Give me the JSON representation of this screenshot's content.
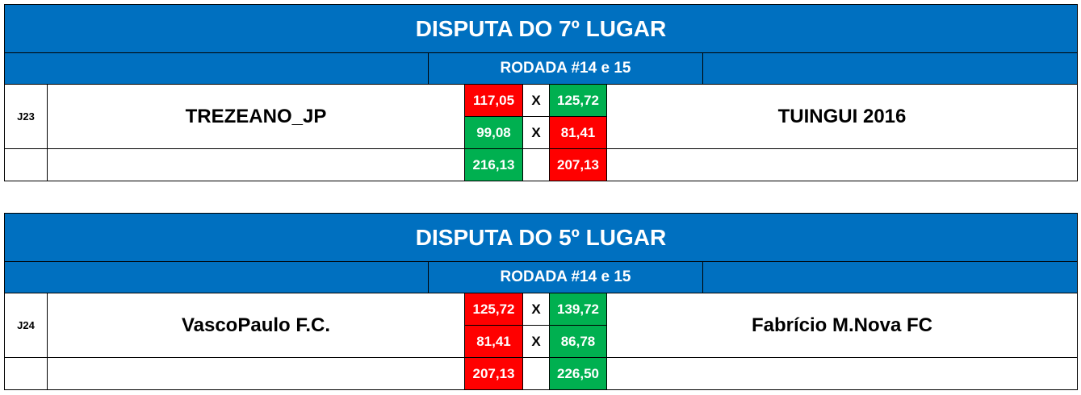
{
  "blocks": [
    {
      "title": "DISPUTA DO 7º LUGAR",
      "round": "RODADA #14 e 15",
      "match_id": "J23",
      "home": "TREZEANO_JP",
      "away": "TUINGUI 2016",
      "rows": [
        {
          "home": "117,05",
          "home_color": "#ff0000",
          "sep": "X",
          "away": "125,72",
          "away_color": "#00b050"
        },
        {
          "home": "99,08",
          "home_color": "#00b050",
          "sep": "X",
          "away": "81,41",
          "away_color": "#ff0000"
        }
      ],
      "totals": {
        "home": "216,13",
        "home_color": "#00b050",
        "away": "207,13",
        "away_color": "#ff0000"
      }
    },
    {
      "title": "DISPUTA DO 5º LUGAR",
      "round": "RODADA #14 e 15",
      "match_id": "J24",
      "home": "VascoPaulo F.C.",
      "away": "Fabrício M.Nova FC",
      "rows": [
        {
          "home": "125,72",
          "home_color": "#ff0000",
          "sep": "X",
          "away": "139,72",
          "away_color": "#00b050"
        },
        {
          "home": "81,41",
          "home_color": "#ff0000",
          "sep": "X",
          "away": "86,78",
          "away_color": "#00b050"
        }
      ],
      "totals": {
        "home": "207,13",
        "home_color": "#ff0000",
        "away": "226,50",
        "away_color": "#00b050"
      }
    }
  ]
}
